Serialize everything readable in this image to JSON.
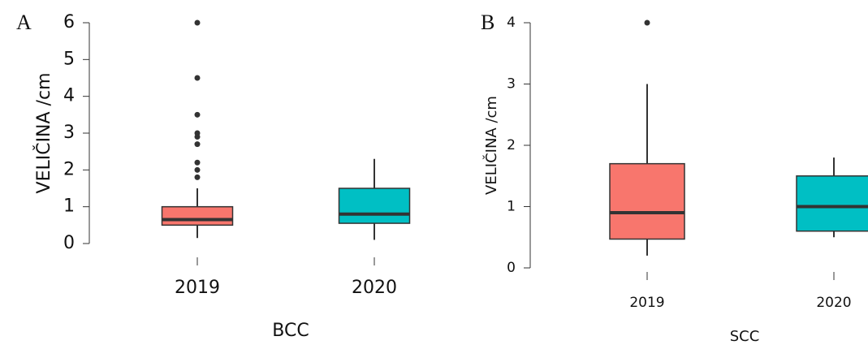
{
  "chart_data": [
    {
      "type": "box",
      "panel": "A",
      "ylabel": "VELIČINA /cm",
      "xlabel": "BCC",
      "categories": [
        "2019",
        "2020"
      ],
      "ylim": [
        0,
        6
      ],
      "yticks": [
        0,
        1,
        2,
        3,
        4,
        5,
        6
      ],
      "boxes": [
        {
          "color": "#f8766d",
          "min": 0.15,
          "q1": 0.5,
          "median": 0.65,
          "q3": 1.0,
          "max": 1.5,
          "outliers": [
            6,
            4.5,
            3.5,
            3.0,
            2.9,
            2.7,
            2.2,
            2.0,
            1.8
          ]
        },
        {
          "color": "#00bfc4",
          "min": 0.1,
          "q1": 0.55,
          "median": 0.8,
          "q3": 1.5,
          "max": 2.3,
          "outliers": []
        }
      ]
    },
    {
      "type": "box",
      "panel": "B",
      "ylabel": "VELIČINA /cm",
      "xlabel": "SCC",
      "categories": [
        "2019",
        "2020"
      ],
      "ylim": [
        0,
        4
      ],
      "yticks": [
        0,
        1,
        2,
        3,
        4
      ],
      "boxes": [
        {
          "color": "#f8766d",
          "min": 0.2,
          "q1": 0.47,
          "median": 0.9,
          "q3": 1.7,
          "max": 3.0,
          "outliers": [
            4
          ]
        },
        {
          "color": "#00bfc4",
          "min": 0.5,
          "q1": 0.6,
          "median": 1.0,
          "q3": 1.5,
          "max": 1.8,
          "outliers": []
        }
      ]
    }
  ]
}
